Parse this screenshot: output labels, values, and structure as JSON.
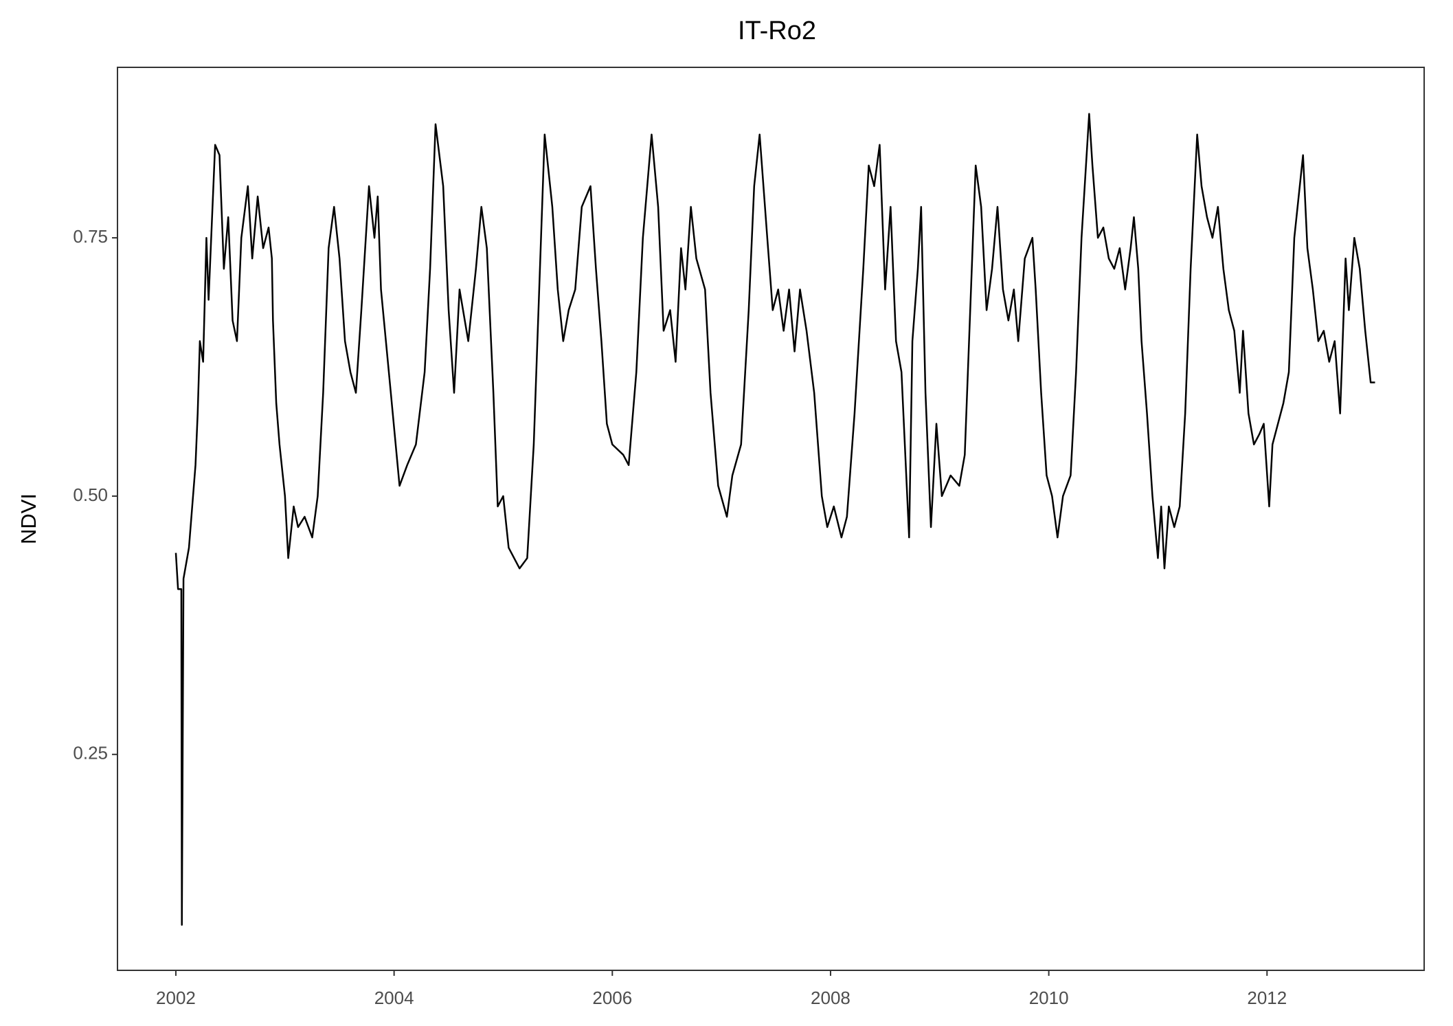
{
  "chart_data": {
    "type": "line",
    "title": "IT-Ro2",
    "y_label": "NDVI",
    "color": "#000000",
    "grid": false,
    "xlim": [
      2001.465,
      2013.44
    ],
    "xticks": [
      2002,
      2004,
      2006,
      2008,
      2010,
      2012
    ],
    "ylim": [
      0.041,
      0.915
    ],
    "yticks": [
      0.25,
      {
        "value": 0.5,
        "label": "0.50"
      },
      0.75
    ],
    "x": [
      2002.0,
      2002.02,
      2002.05,
      2002.055,
      2002.07,
      2002.12,
      2002.18,
      2002.2,
      2002.22,
      2002.25,
      2002.28,
      2002.3,
      2002.36,
      2002.4,
      2002.44,
      2002.48,
      2002.52,
      2002.56,
      2002.6,
      2002.66,
      2002.7,
      2002.75,
      2002.8,
      2002.85,
      2002.88,
      2002.89,
      2002.92,
      2002.95,
      2003.0,
      2003.03,
      2003.08,
      2003.12,
      2003.18,
      2003.25,
      2003.3,
      2003.35,
      2003.4,
      2003.45,
      2003.5,
      2003.55,
      2003.6,
      2003.65,
      2003.7,
      2003.77,
      2003.82,
      2003.85,
      2003.88,
      2003.97,
      2004.05,
      2004.12,
      2004.2,
      2004.28,
      2004.33,
      2004.38,
      2004.45,
      2004.5,
      2004.55,
      2004.6,
      2004.68,
      2004.75,
      2004.8,
      2004.85,
      2004.91,
      2004.95,
      2005.0,
      2005.05,
      2005.15,
      2005.22,
      2005.28,
      2005.33,
      2005.38,
      2005.45,
      2005.5,
      2005.55,
      2005.6,
      2005.66,
      2005.72,
      2005.8,
      2005.85,
      2005.9,
      2005.95,
      2006.0,
      2006.1,
      2006.15,
      2006.22,
      2006.28,
      2006.36,
      2006.42,
      2006.47,
      2006.53,
      2006.58,
      2006.63,
      2006.67,
      2006.72,
      2006.77,
      2006.85,
      2006.9,
      2006.97,
      2007.05,
      2007.1,
      2007.18,
      2007.25,
      2007.3,
      2007.35,
      2007.42,
      2007.47,
      2007.52,
      2007.57,
      2007.62,
      2007.67,
      2007.72,
      2007.78,
      2007.85,
      2007.92,
      2007.97,
      2008.03,
      2008.1,
      2008.15,
      2008.22,
      2008.3,
      2008.35,
      2008.4,
      2008.45,
      2008.5,
      2008.55,
      2008.6,
      2008.65,
      2008.72,
      2008.75,
      2008.8,
      2008.83,
      2008.87,
      2008.92,
      2008.97,
      2009.02,
      2009.1,
      2009.18,
      2009.23,
      2009.28,
      2009.33,
      2009.38,
      2009.43,
      2009.48,
      2009.53,
      2009.58,
      2009.63,
      2009.68,
      2009.72,
      2009.78,
      2009.85,
      2009.88,
      2009.93,
      2009.98,
      2010.03,
      2010.08,
      2010.13,
      2010.2,
      2010.25,
      2010.3,
      2010.37,
      2010.4,
      2010.45,
      2010.5,
      2010.55,
      2010.6,
      2010.65,
      2010.7,
      2010.75,
      2010.78,
      2010.82,
      2010.85,
      2010.9,
      2010.95,
      2011.0,
      2011.03,
      2011.06,
      2011.1,
      2011.15,
      2011.2,
      2011.25,
      2011.3,
      2011.36,
      2011.4,
      2011.45,
      2011.5,
      2011.55,
      2011.6,
      2011.65,
      2011.7,
      2011.75,
      2011.78,
      2011.83,
      2011.88,
      2011.93,
      2011.97,
      2012.02,
      2012.05,
      2012.1,
      2012.15,
      2012.2,
      2012.25,
      2012.33,
      2012.37,
      2012.42,
      2012.47,
      2012.52,
      2012.57,
      2012.62,
      2012.67,
      2012.72,
      2012.75,
      2012.8,
      2012.85,
      2012.9,
      2012.95,
      2012.99
    ],
    "values": [
      0.445,
      0.41,
      0.41,
      0.085,
      0.42,
      0.45,
      0.53,
      0.58,
      0.65,
      0.63,
      0.75,
      0.69,
      0.84,
      0.83,
      0.72,
      0.77,
      0.67,
      0.65,
      0.75,
      0.8,
      0.73,
      0.79,
      0.74,
      0.76,
      0.73,
      0.67,
      0.59,
      0.55,
      0.5,
      0.44,
      0.49,
      0.47,
      0.48,
      0.46,
      0.5,
      0.6,
      0.74,
      0.78,
      0.73,
      0.65,
      0.62,
      0.6,
      0.68,
      0.8,
      0.75,
      0.79,
      0.7,
      0.6,
      0.51,
      0.53,
      0.55,
      0.62,
      0.72,
      0.86,
      0.8,
      0.68,
      0.6,
      0.7,
      0.65,
      0.72,
      0.78,
      0.74,
      0.6,
      0.49,
      0.5,
      0.45,
      0.43,
      0.44,
      0.55,
      0.7,
      0.85,
      0.78,
      0.7,
      0.65,
      0.68,
      0.7,
      0.78,
      0.8,
      0.72,
      0.65,
      0.57,
      0.55,
      0.54,
      0.53,
      0.62,
      0.75,
      0.85,
      0.78,
      0.66,
      0.68,
      0.63,
      0.74,
      0.7,
      0.78,
      0.73,
      0.7,
      0.6,
      0.51,
      0.48,
      0.52,
      0.55,
      0.68,
      0.8,
      0.85,
      0.75,
      0.68,
      0.7,
      0.66,
      0.7,
      0.64,
      0.7,
      0.66,
      0.6,
      0.5,
      0.47,
      0.49,
      0.46,
      0.48,
      0.58,
      0.72,
      0.82,
      0.8,
      0.84,
      0.7,
      0.78,
      0.65,
      0.62,
      0.46,
      0.65,
      0.72,
      0.78,
      0.6,
      0.47,
      0.57,
      0.5,
      0.52,
      0.51,
      0.54,
      0.68,
      0.82,
      0.78,
      0.68,
      0.72,
      0.78,
      0.7,
      0.67,
      0.7,
      0.65,
      0.73,
      0.75,
      0.7,
      0.6,
      0.52,
      0.5,
      0.46,
      0.5,
      0.52,
      0.62,
      0.75,
      0.87,
      0.82,
      0.75,
      0.76,
      0.73,
      0.72,
      0.74,
      0.7,
      0.74,
      0.77,
      0.72,
      0.65,
      0.58,
      0.5,
      0.44,
      0.49,
      0.43,
      0.49,
      0.47,
      0.49,
      0.58,
      0.72,
      0.85,
      0.8,
      0.77,
      0.75,
      0.78,
      0.72,
      0.68,
      0.66,
      0.6,
      0.66,
      0.58,
      0.55,
      0.56,
      0.57,
      0.49,
      0.55,
      0.57,
      0.59,
      0.62,
      0.75,
      0.83,
      0.74,
      0.7,
      0.65,
      0.66,
      0.63,
      0.65,
      0.58,
      0.73,
      0.68,
      0.75,
      0.72,
      0.66,
      0.61,
      0.61
    ]
  }
}
